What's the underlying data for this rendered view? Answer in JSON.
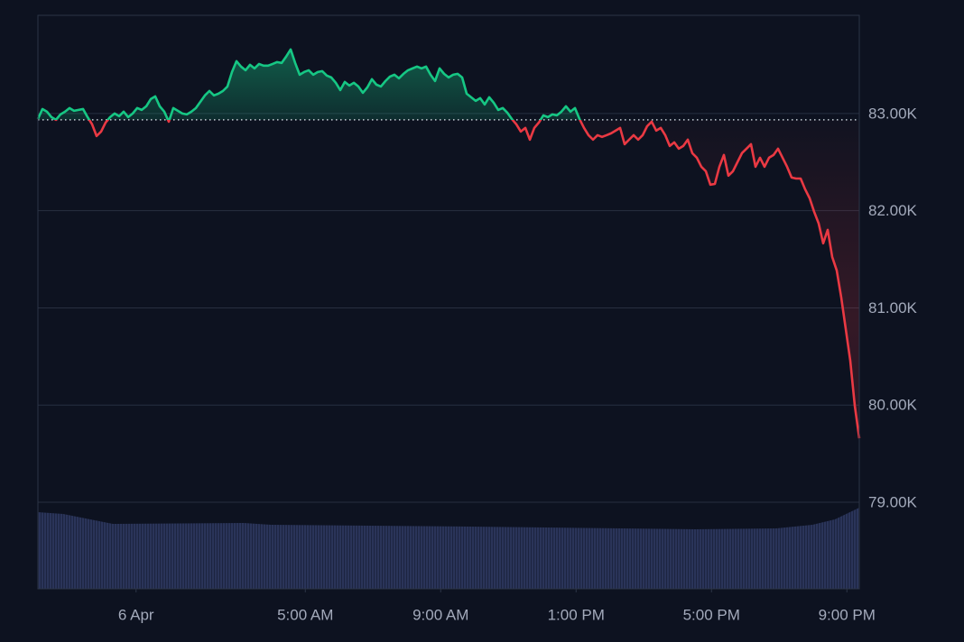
{
  "chart_data": {
    "type": "line",
    "x": [
      -174,
      -166,
      -158,
      -150,
      -142,
      -134,
      -126,
      -118,
      -110,
      -102,
      -94,
      -86,
      -78,
      -70,
      -62,
      -54,
      -46,
      -38,
      -30,
      -22,
      -14,
      -6,
      2,
      10,
      18,
      26,
      34,
      42,
      50,
      58,
      66,
      74,
      82,
      90,
      98,
      106,
      114,
      122,
      130,
      138,
      146,
      154,
      162,
      170,
      178,
      186,
      194,
      202,
      210,
      218,
      226,
      234,
      242,
      250,
      258,
      266,
      274,
      282,
      290,
      298,
      306,
      314,
      322,
      330,
      338,
      346,
      354,
      362,
      370,
      378,
      386,
      394,
      402,
      410,
      418,
      426,
      434,
      442,
      450,
      458,
      466,
      474,
      482,
      490,
      498,
      506,
      514,
      522,
      530,
      538,
      546,
      554,
      562,
      570,
      578,
      586,
      594,
      602,
      610,
      618,
      626,
      634,
      642,
      650,
      658,
      666,
      674,
      682,
      690,
      698,
      706,
      714,
      722,
      730,
      738,
      746,
      754,
      762,
      770,
      778,
      786,
      794,
      802,
      810,
      818,
      826,
      834,
      842,
      850,
      858,
      866,
      874,
      882,
      890,
      898,
      906,
      914,
      922,
      930,
      938,
      946,
      954,
      962,
      970,
      978,
      986,
      994,
      1002,
      1010,
      1018,
      1026,
      1034,
      1042,
      1050,
      1058,
      1066,
      1074,
      1082,
      1090,
      1098,
      1106,
      1114,
      1122,
      1130,
      1138,
      1146,
      1154,
      1162,
      1170,
      1178,
      1186,
      1194,
      1202,
      1210,
      1218,
      1226,
      1234,
      1242,
      1250,
      1258,
      1266,
      1274,
      1282
    ],
    "values": [
      82944,
      83046,
      83019,
      82963,
      82935,
      82991,
      83019,
      83056,
      83028,
      83037,
      83046,
      82963,
      82889,
      82768,
      82814,
      82907,
      82963,
      83000,
      82972,
      83019,
      82963,
      83000,
      83056,
      83037,
      83074,
      83148,
      83176,
      83074,
      83019,
      82916,
      83056,
      83028,
      83000,
      82991,
      83019,
      83056,
      83121,
      83186,
      83232,
      83186,
      83204,
      83232,
      83278,
      83427,
      83538,
      83483,
      83445,
      83501,
      83464,
      83510,
      83492,
      83492,
      83510,
      83529,
      83520,
      83585,
      83659,
      83520,
      83399,
      83427,
      83445,
      83399,
      83427,
      83436,
      83390,
      83371,
      83316,
      83241,
      83325,
      83288,
      83316,
      83278,
      83213,
      83269,
      83353,
      83297,
      83278,
      83334,
      83380,
      83399,
      83362,
      83408,
      83445,
      83464,
      83483,
      83464,
      83483,
      83399,
      83334,
      83464,
      83408,
      83371,
      83399,
      83408,
      83371,
      83204,
      83167,
      83130,
      83158,
      83093,
      83167,
      83111,
      83037,
      83056,
      83009,
      82944,
      82889,
      82814,
      82852,
      82731,
      82852,
      82907,
      82981,
      82963,
      82991,
      82981,
      83019,
      83074,
      83019,
      83056,
      82944,
      82852,
      82777,
      82731,
      82777,
      82759,
      82777,
      82796,
      82824,
      82852,
      82684,
      82731,
      82777,
      82731,
      82777,
      82870,
      82916,
      82824,
      82852,
      82777,
      82666,
      82703,
      82638,
      82666,
      82731,
      82592,
      82545,
      82452,
      82406,
      82267,
      82276,
      82452,
      82573,
      82360,
      82406,
      82499,
      82592,
      82638,
      82684,
      82452,
      82545,
      82452,
      82545,
      82573,
      82638,
      82545,
      82452,
      82341,
      82331,
      82331,
      82220,
      82128,
      81988,
      81868,
      81664,
      81803,
      81524,
      81385,
      81107,
      80782,
      80457,
      79993,
      79659
    ],
    "baseline": 82935,
    "up_color": "#16c784",
    "down_color": "#ea3943",
    "xlim": [
      -174,
      1282
    ],
    "xticks": [
      {
        "value": 0,
        "label": "6 Apr"
      },
      {
        "value": 300,
        "label": "5:00 AM"
      },
      {
        "value": 540,
        "label": "9:00 AM"
      },
      {
        "value": 780,
        "label": "1:00 PM"
      },
      {
        "value": 1020,
        "label": "5:00 PM"
      },
      {
        "value": 1260,
        "label": "9:00 PM"
      }
    ],
    "ylim": [
      78110,
      84010
    ],
    "yticks": [
      {
        "value": 79000,
        "label": "79.00K"
      },
      {
        "value": 80000,
        "label": "80.00K"
      },
      {
        "value": 81000,
        "label": "81.00K"
      },
      {
        "value": 82000,
        "label": "82.00K"
      },
      {
        "value": 83000,
        "label": "83.00K"
      }
    ],
    "grid": true
  }
}
